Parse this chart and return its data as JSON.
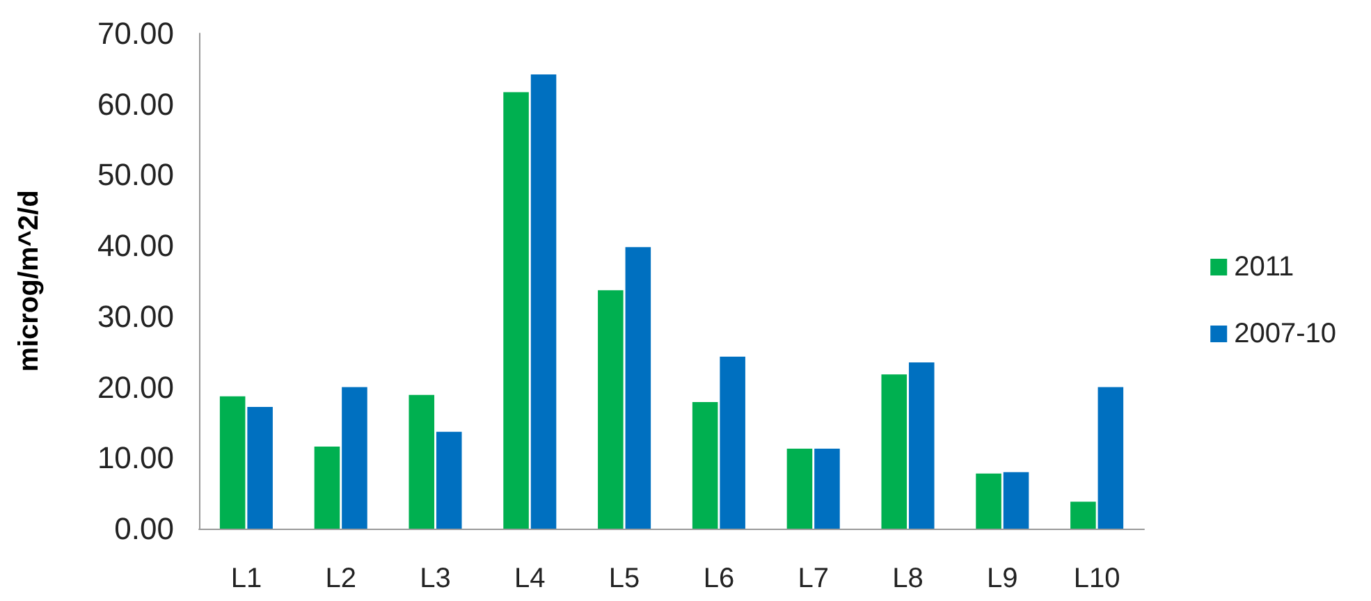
{
  "chart_data": {
    "type": "bar",
    "ylabel": "microg/m^2/d",
    "categories": [
      "L1",
      "L2",
      "L3",
      "L4",
      "L5",
      "L6",
      "L7",
      "L8",
      "L9",
      "L10"
    ],
    "series": [
      {
        "name": "2011",
        "color": "#00b050",
        "values": [
          18.7,
          11.6,
          18.9,
          61.7,
          33.7,
          17.9,
          11.3,
          21.8,
          7.8,
          3.8
        ]
      },
      {
        "name": "2007-10",
        "color": "#0070c0",
        "values": [
          17.2,
          20.0,
          13.7,
          64.2,
          39.8,
          24.3,
          11.3,
          23.5,
          8.0,
          20.0
        ]
      }
    ],
    "ylim": [
      0,
      70
    ],
    "yticks": [
      {
        "value": 0,
        "label": "0.00"
      },
      {
        "value": 10,
        "label": "10.00"
      },
      {
        "value": 20,
        "label": "20.00"
      },
      {
        "value": 30,
        "label": "30.00"
      },
      {
        "value": 40,
        "label": "40.00"
      },
      {
        "value": 50,
        "label": "50.00"
      },
      {
        "value": 60,
        "label": "60.00"
      },
      {
        "value": 70,
        "label": "70.00"
      }
    ],
    "grid": false,
    "legend": "right"
  }
}
